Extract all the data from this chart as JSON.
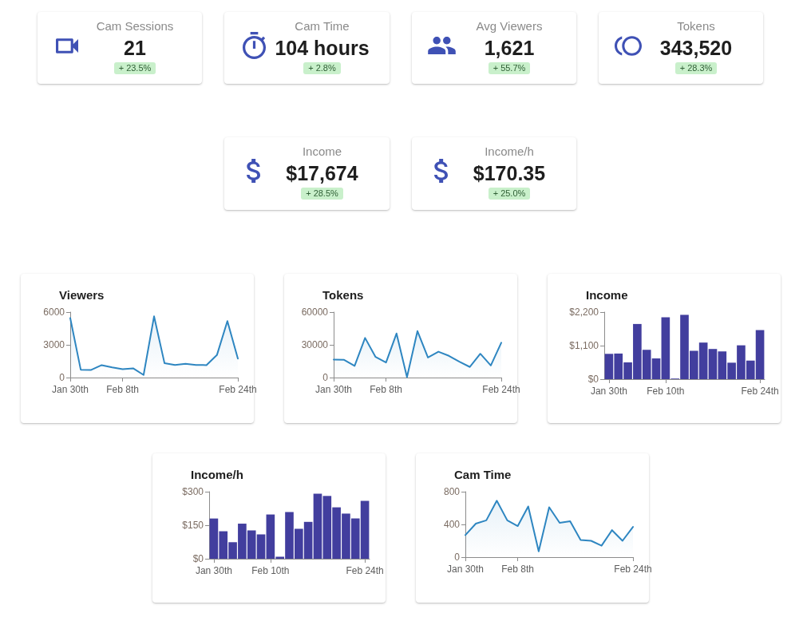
{
  "chart_data": [
    {
      "type": "other",
      "title": "Cam Sessions",
      "annotations": [
        "21",
        "+ 23.5%"
      ]
    },
    {
      "type": "other",
      "title": "Cam Time",
      "annotations": [
        "104 hours",
        "+ 2.8%"
      ]
    },
    {
      "type": "other",
      "title": "Avg Viewers",
      "annotations": [
        "1,621",
        "+ 55.7%"
      ]
    },
    {
      "type": "other",
      "title": "Tokens",
      "annotations": [
        "343,520",
        "+ 28.3%"
      ]
    },
    {
      "type": "other",
      "title": "Income",
      "annotations": [
        "$17,674",
        "+ 28.5%"
      ]
    },
    {
      "type": "other",
      "title": "Income/h",
      "annotations": [
        "$170.35",
        "+ 25.0%"
      ]
    },
    {
      "type": "area",
      "title": "Viewers",
      "categories": [
        "Jan 30th",
        null,
        null,
        null,
        null,
        "Feb 8th",
        null,
        null,
        null,
        null,
        null,
        null,
        null,
        null,
        null,
        null,
        "Feb 24th"
      ],
      "values": [
        5450,
        720,
        700,
        1140,
        940,
        770,
        850,
        240,
        5610,
        1310,
        1160,
        1260,
        1160,
        1140,
        2060,
        5180,
        1740
      ],
      "color": "#2e86c1",
      "ylim": [
        0,
        6000
      ],
      "yticks": [
        0,
        3000,
        6000
      ]
    },
    {
      "type": "area",
      "title": "Tokens",
      "categories": [
        "Jan 30th",
        null,
        null,
        null,
        null,
        "Feb 8th",
        null,
        null,
        null,
        null,
        null,
        null,
        null,
        null,
        null,
        null,
        "Feb 24th"
      ],
      "values": [
        16500,
        16200,
        10700,
        36300,
        18900,
        13800,
        40400,
        400,
        42600,
        18400,
        23700,
        19900,
        14500,
        9700,
        21800,
        11100,
        31900
      ],
      "color": "#2e86c1",
      "ylim": [
        0,
        60000
      ],
      "yticks": [
        0,
        30000,
        60000
      ]
    },
    {
      "type": "bar",
      "title": "Income",
      "categories": [
        "Jan 30th",
        null,
        null,
        null,
        null,
        null,
        "Feb 10th",
        null,
        null,
        null,
        null,
        null,
        null,
        null,
        null,
        null,
        "Feb 24th"
      ],
      "values": [
        830,
        840,
        550,
        1810,
        960,
        680,
        2030,
        20,
        2110,
        930,
        1200,
        990,
        910,
        540,
        1110,
        610,
        1610
      ],
      "color": "#423e9e",
      "ylim": [
        0,
        2200
      ],
      "yticks": [
        {
          "value": 0,
          "label": "$0"
        },
        {
          "value": 1100,
          "label": "$1,100"
        },
        {
          "value": 2200,
          "label": "$2,200"
        }
      ]
    },
    {
      "type": "bar",
      "title": "Income/h",
      "categories": [
        "Jan 30th",
        null,
        null,
        null,
        null,
        null,
        "Feb 10th",
        null,
        null,
        null,
        null,
        null,
        null,
        null,
        null,
        null,
        "Feb 24th"
      ],
      "values": [
        180,
        123,
        74,
        157,
        127,
        109,
        198,
        9,
        209,
        134,
        165,
        291,
        281,
        230,
        202,
        180,
        259
      ],
      "color": "#423e9e",
      "ylim": [
        0,
        300
      ],
      "yticks": [
        {
          "value": 0,
          "label": "$0"
        },
        {
          "value": 150,
          "label": "$150"
        },
        {
          "value": 300,
          "label": "$300"
        }
      ]
    },
    {
      "type": "area",
      "title": "Cam Time",
      "categories": [
        "Jan 30th",
        null,
        null,
        null,
        null,
        "Feb 8th",
        null,
        null,
        null,
        null,
        null,
        null,
        null,
        null,
        null,
        null,
        "Feb 24th"
      ],
      "values": [
        270,
        410,
        450,
        690,
        450,
        380,
        620,
        70,
        610,
        420,
        440,
        210,
        200,
        140,
        330,
        200,
        370
      ],
      "color": "#2e86c1",
      "ylim": [
        0,
        800
      ],
      "yticks": [
        0,
        400,
        800
      ]
    }
  ]
}
